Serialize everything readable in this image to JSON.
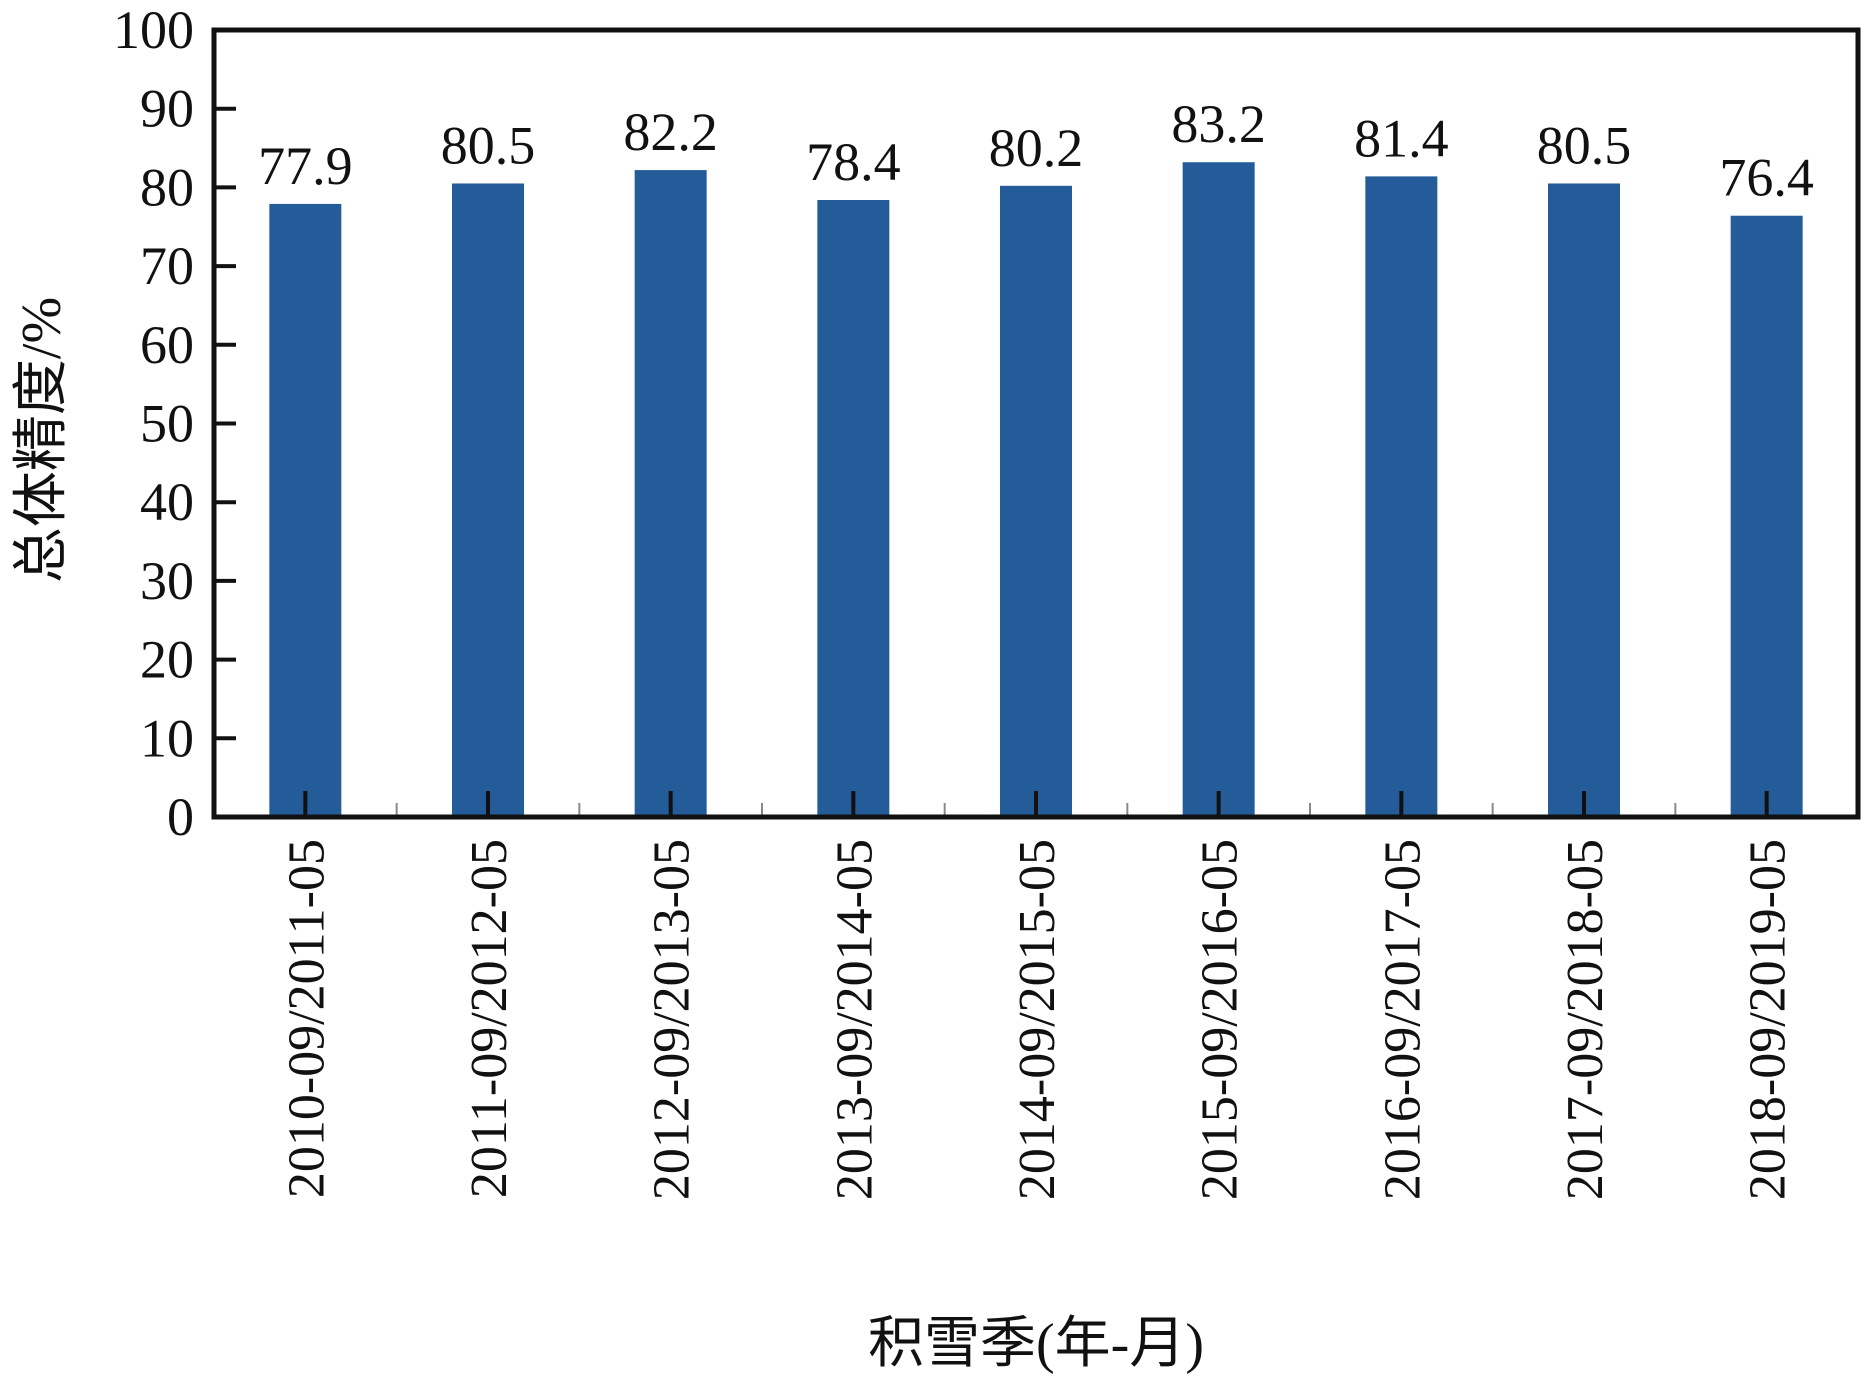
{
  "chart_data": {
    "type": "bar",
    "title": "",
    "xlabel": "积雪季(年-月)",
    "ylabel": "总体精度/%",
    "categories": [
      "2010-09/2011-05",
      "2011-09/2012-05",
      "2012-09/2013-05",
      "2013-09/2014-05",
      "2014-09/2015-05",
      "2015-09/2016-05",
      "2016-09/2017-05",
      "2017-09/2018-05",
      "2018-09/2019-05"
    ],
    "values": [
      77.9,
      80.5,
      82.2,
      78.4,
      80.2,
      83.2,
      81.4,
      80.5,
      76.4
    ],
    "data_labels": [
      "77.9",
      "80.5",
      "82.2",
      "78.4",
      "80.2",
      "83.2",
      "81.4",
      "80.5",
      "76.4"
    ],
    "ylim": [
      0,
      100
    ],
    "yticks": [
      0,
      10,
      20,
      30,
      40,
      50,
      60,
      70,
      80,
      90,
      100
    ],
    "ytick_labels": [
      "0",
      "10",
      "20",
      "30",
      "40",
      "50",
      "60",
      "70",
      "80",
      "90",
      "100"
    ],
    "grid": false,
    "legend": "none",
    "bar_color": "#245b99",
    "axis_color": "#111111"
  }
}
